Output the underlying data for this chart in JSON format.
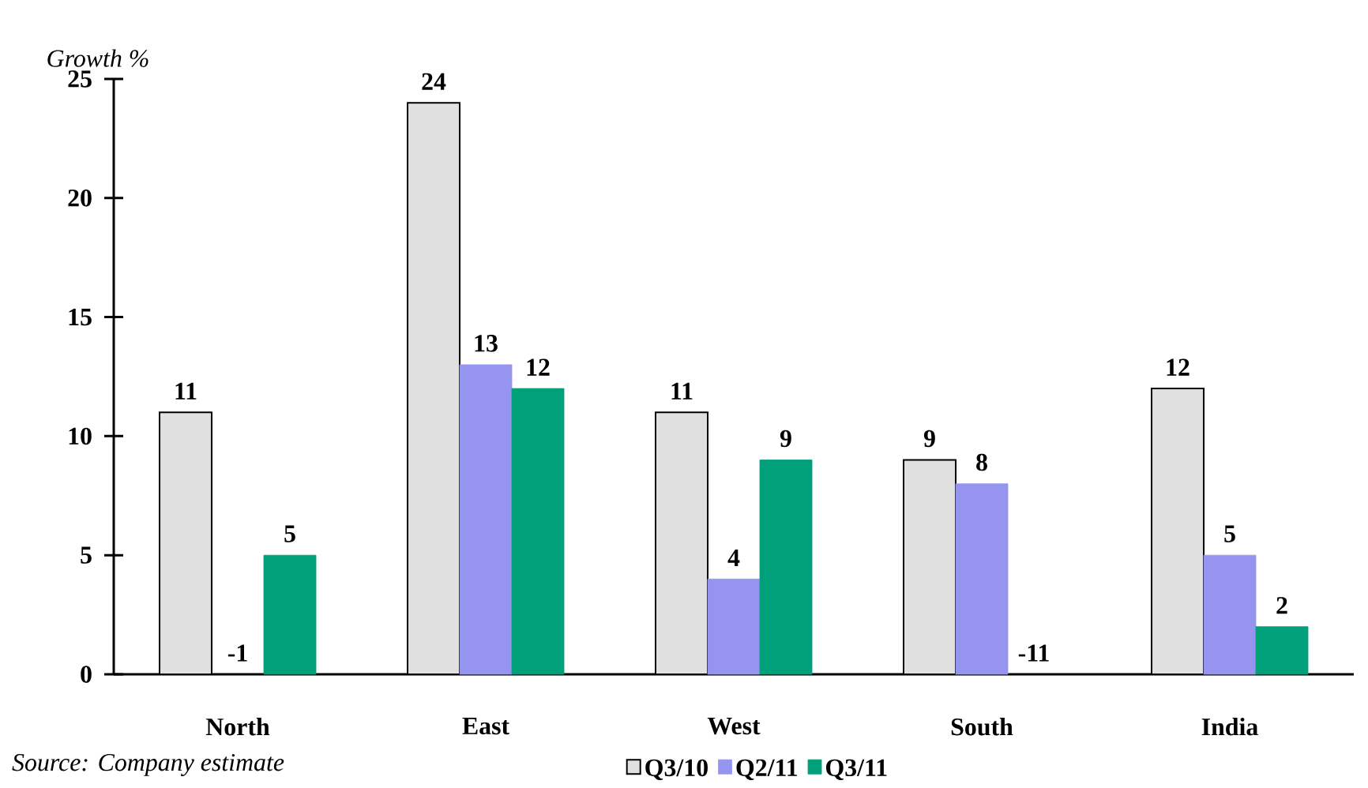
{
  "chart_data": {
    "type": "bar",
    "ylabel": "Growth %",
    "categories": [
      "North",
      "East",
      "West",
      "South",
      "India"
    ],
    "series": [
      {
        "name": "Q3/10",
        "color": "#e0e0e0",
        "values": [
          11,
          24,
          11,
          9,
          12
        ],
        "value_labels": [
          "11",
          "24",
          "11",
          "9",
          "12"
        ]
      },
      {
        "name": "Q2/11",
        "color": "#9595f0",
        "values": [
          null,
          13,
          4,
          8,
          5
        ],
        "value_labels": [
          "-1",
          "13",
          "4",
          "8",
          "5"
        ]
      },
      {
        "name": "Q3/11",
        "color": "#00a07a",
        "values": [
          5,
          12,
          9,
          null,
          2
        ],
        "value_labels": [
          "5",
          "12",
          "9",
          "-11",
          "2"
        ]
      }
    ],
    "ylim": [
      0,
      25
    ],
    "yticks": [
      0,
      5,
      10,
      15,
      20,
      25
    ],
    "grid": false,
    "legend": "bottom",
    "annotations": [
      "Source: Company estimate"
    ]
  }
}
